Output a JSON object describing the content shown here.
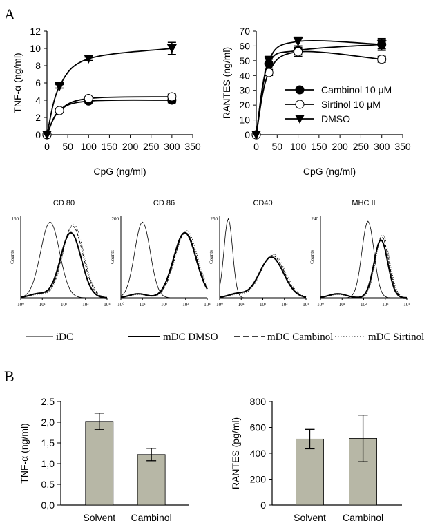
{
  "panels": {
    "A": "A",
    "B": "B"
  },
  "colors": {
    "bar": "#b7b7a6",
    "ink": "#000000",
    "marker_open": "#ffffff"
  },
  "chart_data": [
    {
      "id": "tnf_line",
      "type": "line",
      "ylabel": "TNF-α (ng/ml)",
      "xlabel": "CpG (ng/ml)",
      "xlim": [
        0,
        350
      ],
      "ylim": [
        0,
        12
      ],
      "xticks": [
        "0",
        "50",
        "100",
        "150",
        "200",
        "250",
        "300",
        "350"
      ],
      "yticks": [
        "0",
        "2",
        "4",
        "6",
        "8",
        "10",
        "12"
      ],
      "x": [
        0,
        30,
        100,
        300
      ],
      "series": [
        {
          "marker": "circle-filled",
          "values": [
            0,
            2.8,
            3.9,
            4.0
          ],
          "err": [
            0,
            0.15,
            0.2,
            0.3
          ]
        },
        {
          "marker": "circle-open",
          "values": [
            0,
            2.8,
            4.2,
            4.4
          ],
          "err": [
            0,
            0.15,
            0.2,
            0.3
          ]
        },
        {
          "marker": "triangle-down",
          "values": [
            0,
            5.6,
            8.8,
            10.0
          ],
          "err": [
            0,
            0.2,
            0.2,
            0.7
          ]
        }
      ]
    },
    {
      "id": "rantes_line",
      "type": "line",
      "ylabel": "RANTES (ng/ml)",
      "xlabel": "CpG (ng/ml)",
      "xlim": [
        0,
        350
      ],
      "ylim": [
        0,
        70
      ],
      "xticks": [
        "0",
        "50",
        "100",
        "150",
        "200",
        "250",
        "300",
        "350"
      ],
      "yticks": [
        "0",
        "10",
        "20",
        "30",
        "40",
        "50",
        "60",
        "70"
      ],
      "x": [
        0,
        30,
        100,
        300
      ],
      "series": [
        {
          "name": "Cambinol 10 μM",
          "marker": "circle-filled",
          "values": [
            0,
            48,
            57,
            61
          ],
          "err": [
            0,
            3,
            3,
            3
          ]
        },
        {
          "name": "Sirtinol 10 μM",
          "marker": "circle-open",
          "values": [
            0,
            42,
            56,
            51
          ],
          "err": [
            0,
            2,
            3,
            2
          ]
        },
        {
          "name": "DMSO",
          "marker": "triangle-down",
          "values": [
            0,
            50,
            63,
            61
          ],
          "err": [
            0,
            3,
            3,
            4
          ]
        }
      ],
      "legend_position": "center-right"
    },
    {
      "id": "flow_histograms",
      "type": "line",
      "panels": [
        {
          "title": "CD 80",
          "ymax_label": "150"
        },
        {
          "title": "CD 86",
          "ymax_label": "200"
        },
        {
          "title": "CD40",
          "ymax_label": "250"
        },
        {
          "title": "MHC II",
          "ymax_label": "240"
        }
      ],
      "ylabel": "Counts",
      "xticks": [
        "10⁰",
        "10¹",
        "10²",
        "10³",
        "10⁴"
      ],
      "series": [
        {
          "name": "iDC",
          "style": "thin"
        },
        {
          "name": "mDC DMSO",
          "style": "thick"
        },
        {
          "name": "mDC Cambinol",
          "style": "dashed"
        },
        {
          "name": "mDC Sirtinol",
          "style": "dotted"
        }
      ]
    },
    {
      "id": "tnf_bar",
      "type": "bar",
      "ylabel": "TNF-α (ng/ml)",
      "categories": [
        "Solvent",
        "Cambinol"
      ],
      "values": [
        2.02,
        1.22
      ],
      "err": [
        0.2,
        0.15
      ],
      "ylim": [
        0,
        2.5
      ],
      "yticks": [
        "0,0",
        "0,5",
        "1,0",
        "1,5",
        "2,0",
        "2,5"
      ]
    },
    {
      "id": "rantes_bar",
      "type": "bar",
      "ylabel": "RANTES (pg/ml)",
      "categories": [
        "Solvent",
        "Cambinol"
      ],
      "values": [
        510,
        515
      ],
      "err": [
        75,
        180
      ],
      "ylim": [
        0,
        800
      ],
      "yticks": [
        "0",
        "200",
        "400",
        "600",
        "800"
      ]
    }
  ]
}
